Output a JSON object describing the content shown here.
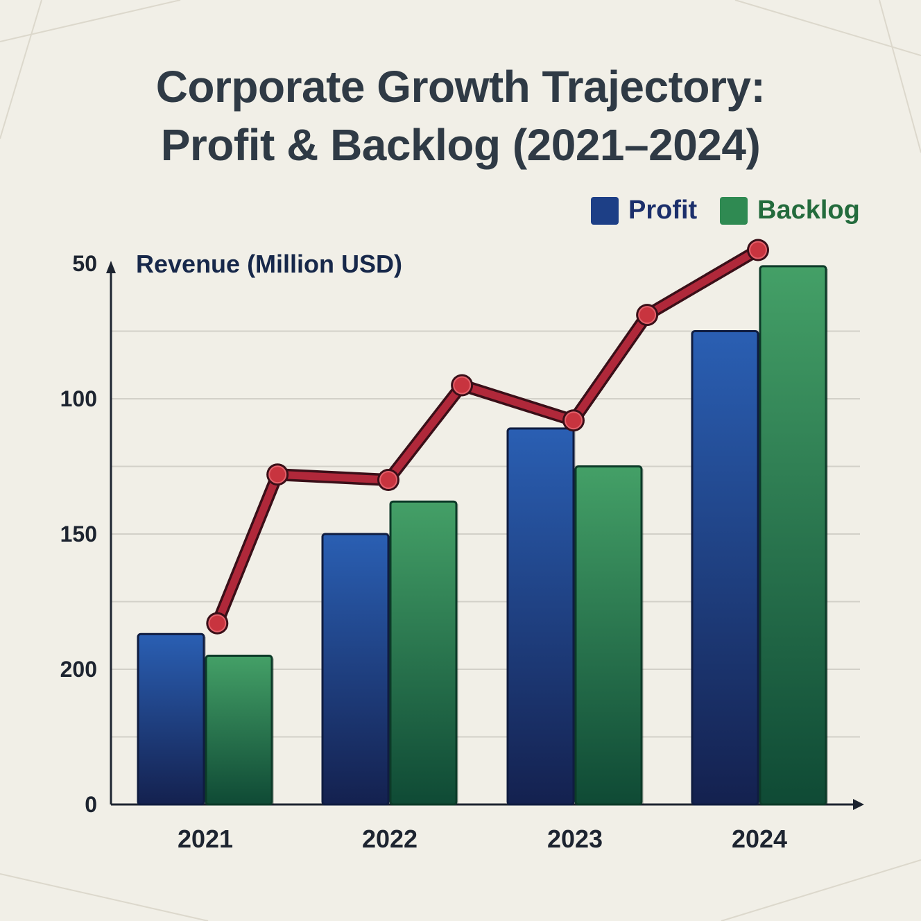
{
  "title_line1": "Corporate Growth Trajectory:",
  "title_line2": "Profit & Backlog (2021–2024)",
  "legend": [
    {
      "label": "Profit",
      "color": "#1f4ea0"
    },
    {
      "label": "Backlog",
      "color": "#2f8a52"
    }
  ],
  "chart_data": {
    "type": "bar",
    "title": "Corporate Growth Trajectory: Profit & Backlog (2021–2024)",
    "ylabel": "Revenue (Million USD)",
    "xlabel": "",
    "categories": [
      "2021",
      "2022",
      "2023",
      "2024"
    ],
    "y_tick_labels": [
      "0",
      "200",
      "150",
      "100",
      "50"
    ],
    "ylim": [
      0,
      200
    ],
    "grid": true,
    "legend_position": "top-right",
    "series": [
      {
        "name": "Profit",
        "type": "bar",
        "color": "#1f4ea0",
        "values": [
          63,
          100,
          139,
          175
        ]
      },
      {
        "name": "Backlog",
        "type": "bar",
        "color": "#2f8a52",
        "values": [
          55,
          112,
          125,
          199
        ]
      },
      {
        "type": "line",
        "color": "#b0283a",
        "x": [
          0.1,
          0.55,
          1.0,
          1.55,
          2.0,
          2.55,
          3.0
        ],
        "values": [
          67,
          122,
          120,
          155,
          142,
          181,
          205
        ]
      }
    ]
  }
}
